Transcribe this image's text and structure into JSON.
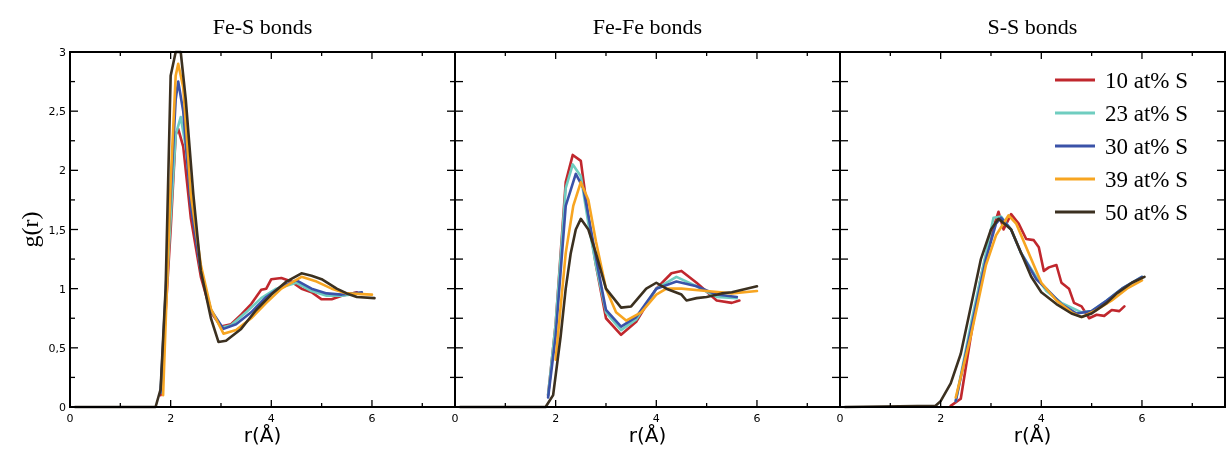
{
  "chart_data": [
    {
      "type": "line",
      "title": "Fe-S bonds",
      "xlabel": "r(Å)",
      "ylabel": "g(r)",
      "xlim": [
        0,
        7.65
      ],
      "ylim": [
        0,
        3
      ],
      "xticks": [
        0,
        {
          "value": 1,
          "label": null
        },
        2,
        {
          "value": 3,
          "label": null
        },
        4,
        {
          "value": 5,
          "label": null
        },
        6,
        {
          "value": 7,
          "label": null
        }
      ],
      "yticks": [
        0,
        {
          "value": 0.25,
          "label": null
        },
        {
          "value": 0.5,
          "label": "0,5"
        },
        {
          "value": 0.75,
          "label": null
        },
        1,
        {
          "value": 1.25,
          "label": null
        },
        {
          "value": 1.5,
          "label": "1,5"
        },
        {
          "value": 1.75,
          "label": null
        },
        2,
        {
          "value": 2.25,
          "label": null
        },
        {
          "value": 2.5,
          "label": "2,5"
        },
        {
          "value": 2.75,
          "label": null
        },
        3
      ],
      "grid": false,
      "legend": false,
      "line_style": "solid",
      "marker": "none",
      "series": [
        {
          "color": "#c0272d",
          "x": [
            1.8,
            2.0,
            2.1,
            2.15,
            2.25,
            2.4,
            2.6,
            2.8,
            3.0,
            3.2,
            3.4,
            3.6,
            3.8,
            3.9,
            4.0,
            4.2,
            4.4,
            4.6,
            4.8,
            5.0,
            5.2,
            5.4,
            5.6,
            5.7
          ],
          "values": [
            0.1,
            1.5,
            2.3,
            2.35,
            2.2,
            1.6,
            1.1,
            0.8,
            0.68,
            0.7,
            0.78,
            0.87,
            0.99,
            1.0,
            1.08,
            1.09,
            1.06,
            1.0,
            0.97,
            0.91,
            0.91,
            0.94,
            0.96,
            0.97
          ]
        },
        {
          "color": "#6fcdc0",
          "x": [
            1.8,
            2.0,
            2.1,
            2.2,
            2.3,
            2.45,
            2.6,
            2.8,
            3.0,
            3.2,
            3.5,
            3.8,
            4.1,
            4.5,
            4.8,
            5.1,
            5.4,
            5.6
          ],
          "values": [
            0.12,
            1.6,
            2.3,
            2.45,
            2.2,
            1.6,
            1.15,
            0.82,
            0.67,
            0.69,
            0.8,
            0.92,
            1.0,
            1.05,
            0.98,
            0.94,
            0.94,
            0.95
          ]
        },
        {
          "color": "#3a52a8",
          "x": [
            1.8,
            2.0,
            2.1,
            2.15,
            2.25,
            2.4,
            2.6,
            2.8,
            3.05,
            3.3,
            3.6,
            3.9,
            4.2,
            4.5,
            4.8,
            5.1,
            5.4,
            5.8
          ],
          "values": [
            0.12,
            1.8,
            2.6,
            2.75,
            2.5,
            1.7,
            1.15,
            0.82,
            0.66,
            0.7,
            0.8,
            0.93,
            1.02,
            1.07,
            1.0,
            0.96,
            0.95,
            0.97
          ]
        },
        {
          "color": "#f7a521",
          "x": [
            1.85,
            2.0,
            2.1,
            2.15,
            2.25,
            2.4,
            2.6,
            2.8,
            3.05,
            3.3,
            3.6,
            3.9,
            4.2,
            4.6,
            4.9,
            5.2,
            5.5,
            6.0
          ],
          "values": [
            0.1,
            1.9,
            2.8,
            2.9,
            2.7,
            1.8,
            1.2,
            0.83,
            0.62,
            0.65,
            0.75,
            0.88,
            1.0,
            1.1,
            1.06,
            1.0,
            0.96,
            0.95
          ]
        },
        {
          "color": "#3b3020",
          "x": [
            0.1,
            1.7,
            1.8,
            1.9,
            2.0,
            2.1,
            2.2,
            2.3,
            2.45,
            2.6,
            2.8,
            2.95,
            3.1,
            3.4,
            3.7,
            4.0,
            4.3,
            4.6,
            4.8,
            5.0,
            5.3,
            5.5,
            5.7,
            6.05
          ],
          "values": [
            0,
            0,
            0.15,
            1.0,
            2.8,
            3.0,
            3.0,
            2.6,
            1.8,
            1.15,
            0.75,
            0.55,
            0.56,
            0.66,
            0.82,
            0.95,
            1.06,
            1.13,
            1.11,
            1.08,
            1.0,
            0.96,
            0.93,
            0.92
          ]
        }
      ]
    },
    {
      "type": "line",
      "title": "Fe-Fe bonds",
      "xlabel": "r(Å)",
      "xlim": [
        0,
        7.65
      ],
      "ylim": [
        0,
        3
      ],
      "xticks": [
        0,
        {
          "value": 1,
          "label": null
        },
        2,
        {
          "value": 3,
          "label": null
        },
        4,
        {
          "value": 5,
          "label": null
        },
        6,
        {
          "value": 7,
          "label": null
        }
      ],
      "yticks": [
        0,
        0.25,
        0.5,
        0.75,
        1,
        1.25,
        1.5,
        1.75,
        2,
        2.25,
        2.5,
        2.75,
        3
      ],
      "tick_labels": "x",
      "grid": false,
      "legend": false,
      "line_style": "solid",
      "marker": "none",
      "series": [
        {
          "color": "#c0272d",
          "x": [
            1.85,
            2.0,
            2.2,
            2.34,
            2.5,
            2.65,
            2.8,
            3.0,
            3.3,
            3.6,
            4.0,
            4.3,
            4.5,
            4.8,
            5.2,
            5.5,
            5.65
          ],
          "values": [
            0.1,
            0.7,
            1.9,
            2.13,
            2.08,
            1.6,
            1.2,
            0.75,
            0.61,
            0.72,
            1.0,
            1.13,
            1.15,
            1.05,
            0.9,
            0.88,
            0.9
          ]
        },
        {
          "color": "#6fcdc0",
          "x": [
            1.85,
            2.0,
            2.2,
            2.34,
            2.5,
            2.65,
            2.8,
            3.0,
            3.3,
            3.6,
            4.0,
            4.4,
            4.8,
            5.2,
            5.6
          ],
          "values": [
            0.1,
            0.7,
            1.85,
            2.05,
            1.95,
            1.55,
            1.2,
            0.8,
            0.65,
            0.74,
            1.0,
            1.1,
            1.02,
            0.93,
            0.92
          ]
        },
        {
          "color": "#3a52a8",
          "x": [
            1.85,
            2.0,
            2.2,
            2.4,
            2.55,
            2.7,
            2.85,
            3.0,
            3.3,
            3.6,
            4.0,
            4.4,
            4.8,
            5.2,
            5.6
          ],
          "values": [
            0.08,
            0.6,
            1.7,
            1.97,
            1.85,
            1.5,
            1.15,
            0.82,
            0.68,
            0.76,
            1.0,
            1.06,
            1.02,
            0.95,
            0.93
          ]
        },
        {
          "color": "#f7a521",
          "x": [
            2.0,
            2.2,
            2.35,
            2.5,
            2.65,
            2.8,
            3.0,
            3.2,
            3.4,
            3.7,
            4.0,
            4.2,
            4.5,
            5.0,
            5.5,
            6.0
          ],
          "values": [
            0.4,
            1.3,
            1.7,
            1.9,
            1.75,
            1.4,
            1.0,
            0.8,
            0.73,
            0.8,
            0.95,
            1.0,
            1.0,
            0.98,
            0.96,
            0.98
          ]
        },
        {
          "color": "#3b3020",
          "x": [
            0.1,
            1.8,
            1.95,
            2.1,
            2.2,
            2.3,
            2.4,
            2.5,
            2.65,
            2.8,
            3.0,
            3.3,
            3.5,
            3.8,
            4.0,
            4.2,
            4.5,
            4.6,
            4.8,
            5.0,
            5.3,
            5.5,
            6.0
          ],
          "values": [
            0,
            0,
            0.1,
            0.6,
            1.0,
            1.3,
            1.5,
            1.59,
            1.5,
            1.3,
            1.0,
            0.84,
            0.85,
            1.0,
            1.05,
            1.0,
            0.95,
            0.9,
            0.92,
            0.93,
            0.96,
            0.97,
            1.02
          ]
        }
      ]
    },
    {
      "type": "line",
      "title": "S-S bonds",
      "xlabel": "r(Å)",
      "xlim": [
        0,
        7.65
      ],
      "ylim": [
        0,
        3
      ],
      "xticks": [
        0,
        {
          "value": 1,
          "label": null
        },
        2,
        {
          "value": 3,
          "label": null
        },
        4,
        {
          "value": 5,
          "label": null
        },
        6,
        {
          "value": 7,
          "label": null
        }
      ],
      "yticks": [
        0,
        0.25,
        0.5,
        0.75,
        1,
        1.25,
        1.5,
        1.75,
        2,
        2.25,
        2.5,
        2.75,
        3
      ],
      "tick_labels": "x",
      "grid": false,
      "legend": "top right",
      "line_style": "solid",
      "marker": "none",
      "series": [
        {
          "name": "10 at% S",
          "color": "#c0272d",
          "x": [
            2.2,
            2.4,
            2.6,
            2.8,
            3.0,
            3.15,
            3.25,
            3.4,
            3.55,
            3.7,
            3.85,
            3.95,
            4.05,
            4.15,
            4.3,
            4.4,
            4.55,
            4.65,
            4.8,
            4.95,
            5.1,
            5.25,
            5.4,
            5.55,
            5.65
          ],
          "values": [
            0.01,
            0.07,
            0.6,
            1.1,
            1.45,
            1.65,
            1.5,
            1.63,
            1.55,
            1.42,
            1.41,
            1.35,
            1.15,
            1.18,
            1.2,
            1.05,
            1.0,
            0.88,
            0.85,
            0.75,
            0.78,
            0.77,
            0.82,
            0.81,
            0.85
          ]
        },
        {
          "name": "23 at% S",
          "color": "#6fcdc0",
          "x": [
            2.3,
            2.6,
            2.9,
            3.05,
            3.2,
            3.4,
            3.6,
            3.9,
            4.1,
            4.4,
            4.8,
            5.0,
            5.3,
            5.6,
            6.0
          ],
          "values": [
            0.05,
            0.7,
            1.3,
            1.6,
            1.61,
            1.5,
            1.3,
            1.1,
            0.98,
            0.88,
            0.8,
            0.81,
            0.9,
            1.0,
            1.1
          ]
        },
        {
          "name": "30 at% S",
          "color": "#3a52a8",
          "x": [
            2.3,
            2.6,
            2.9,
            3.1,
            3.2,
            3.4,
            3.6,
            3.9,
            4.1,
            4.4,
            4.7,
            5.0,
            5.3,
            5.6,
            6.0
          ],
          "values": [
            0.05,
            0.65,
            1.25,
            1.55,
            1.6,
            1.5,
            1.3,
            1.08,
            1.0,
            0.87,
            0.79,
            0.81,
            0.9,
            1.0,
            1.1
          ]
        },
        {
          "name": "39 at% S",
          "color": "#f7a521",
          "x": [
            2.3,
            2.6,
            2.9,
            3.1,
            3.35,
            3.5,
            3.7,
            4.0,
            4.3,
            4.6,
            4.8,
            5.1,
            5.4,
            5.7,
            6.0
          ],
          "values": [
            0.08,
            0.6,
            1.2,
            1.45,
            1.62,
            1.55,
            1.35,
            1.05,
            0.9,
            0.8,
            0.76,
            0.82,
            0.9,
            1.0,
            1.07
          ]
        },
        {
          "name": "50 at% S",
          "color": "#3b3020",
          "x": [
            0.1,
            1.9,
            2.0,
            2.2,
            2.4,
            2.6,
            2.8,
            3.0,
            3.15,
            3.4,
            3.6,
            3.8,
            4.0,
            4.3,
            4.6,
            4.8,
            5.0,
            5.3,
            5.5,
            5.8,
            6.05
          ],
          "values": [
            0,
            0.01,
            0.05,
            0.2,
            0.45,
            0.85,
            1.25,
            1.5,
            1.59,
            1.5,
            1.3,
            1.1,
            0.97,
            0.87,
            0.79,
            0.76,
            0.79,
            0.88,
            0.96,
            1.05,
            1.1
          ]
        }
      ]
    }
  ]
}
